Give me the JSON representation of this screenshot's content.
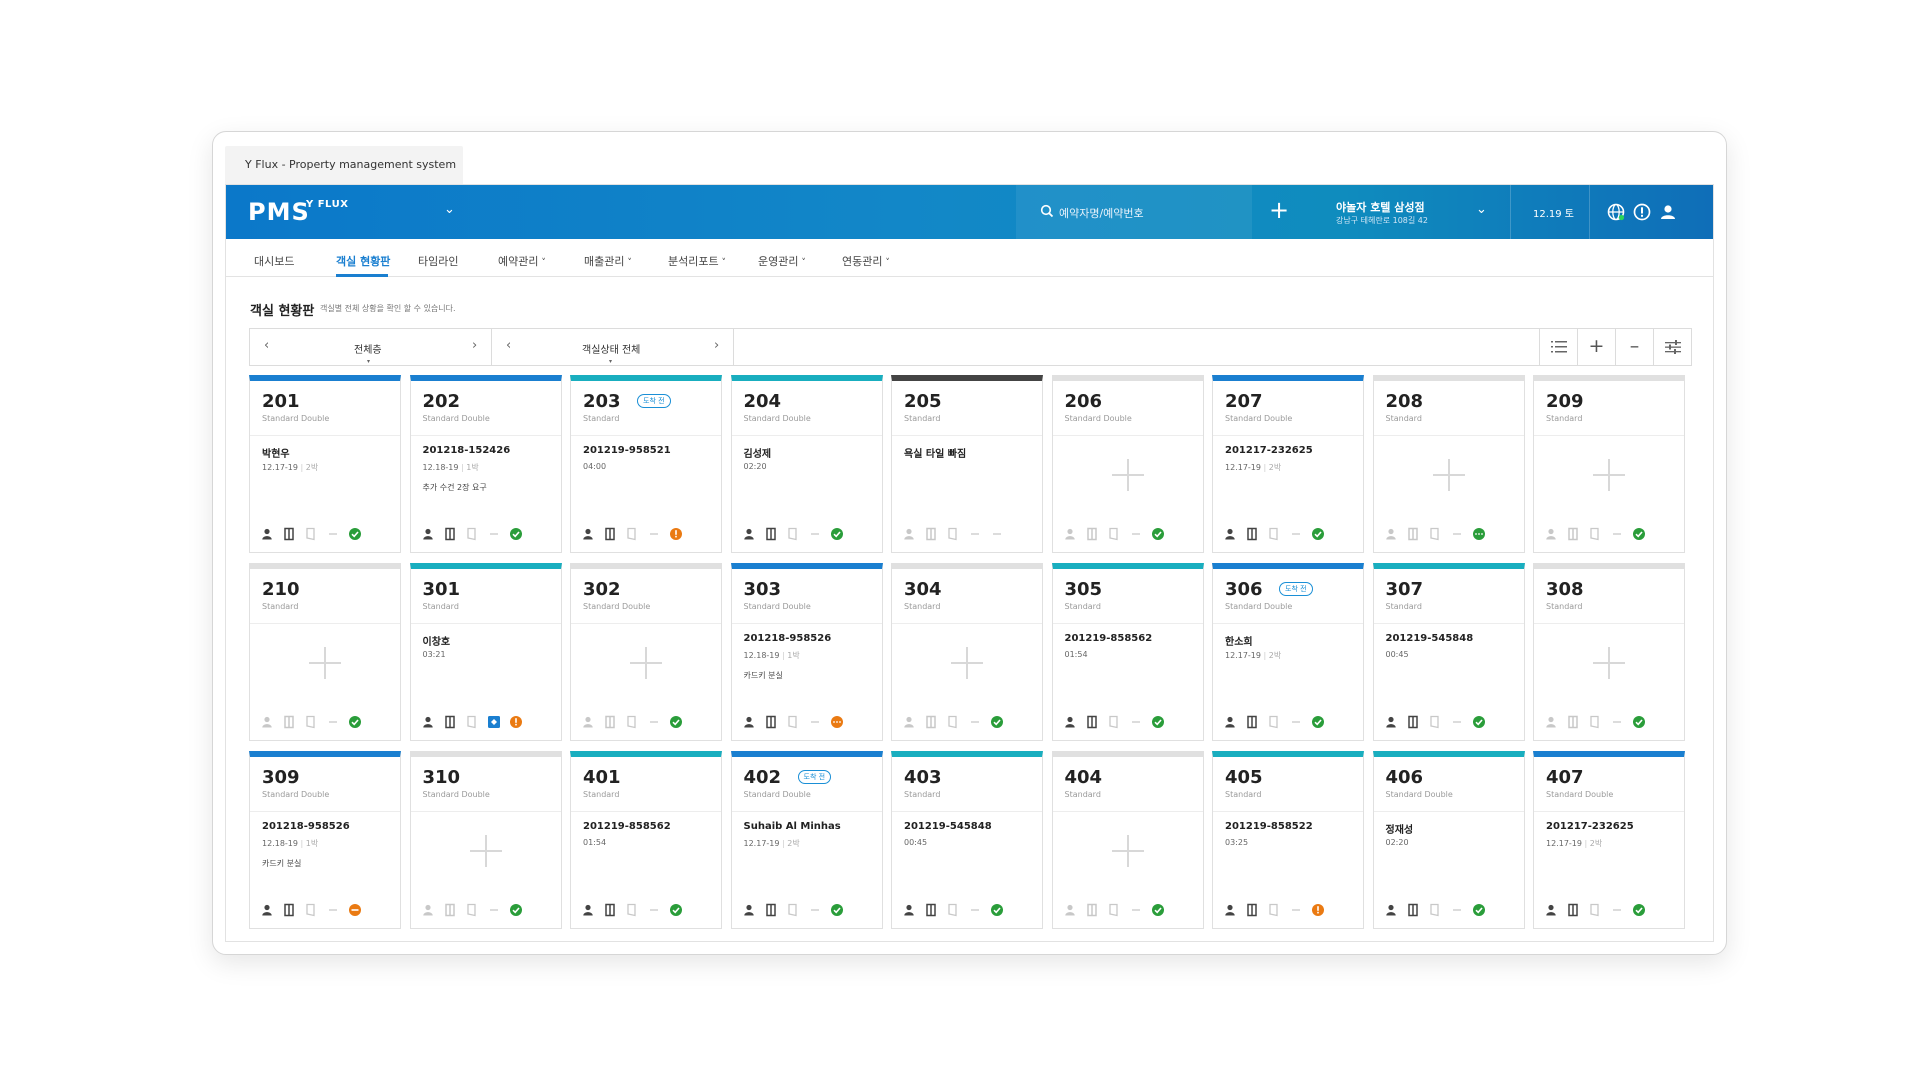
{
  "window": {
    "tab_title": "Y Flux - Property management system"
  },
  "header": {
    "logo": "PMS",
    "logo_sub": "Y FLUX",
    "search_placeholder": "예약자명/예약번호",
    "hotel_name": "야놀자 호텔 삼성점",
    "hotel_address": "강남구 테헤란로 108길 42",
    "date": "12.19 토",
    "accent_color": "#0b78c9"
  },
  "nav": {
    "items": [
      {
        "label": "대시보드",
        "dropdown": false
      },
      {
        "label": "객실 현황판",
        "dropdown": false,
        "active": true
      },
      {
        "label": "타임라인",
        "dropdown": false
      },
      {
        "label": "예약관리",
        "dropdown": true
      },
      {
        "label": "매출관리",
        "dropdown": true
      },
      {
        "label": "분석리포트",
        "dropdown": true
      },
      {
        "label": "운영관리",
        "dropdown": true
      },
      {
        "label": "연동관리",
        "dropdown": true
      }
    ]
  },
  "page": {
    "title": "객실 현황판",
    "description": "객실별 전체 상황을 확인 할 수 있습니다."
  },
  "filters": {
    "floor": "전체층",
    "status": "객실상태 전체"
  },
  "status_colors": {
    "blue": "#1a7fd0",
    "teal": "#19aebf",
    "dark": "#444444",
    "none": "#e0e0e0",
    "ok": "#2a9d3a",
    "warn": "#ea7a12",
    "gray": "#999999"
  },
  "rooms": [
    {
      "num": "201",
      "type": "Standard Double",
      "bar": "blue",
      "guest": "박현우",
      "sub": "12.17-19",
      "pax": "2박",
      "note": "",
      "empty": false,
      "status": "ok"
    },
    {
      "num": "202",
      "type": "Standard Double",
      "bar": "blue",
      "guest": "201218-152426",
      "sub": "12.18-19",
      "pax": "1박",
      "note": "추가 수건 2장 요구",
      "empty": false,
      "status": "ok"
    },
    {
      "num": "203",
      "type": "Standard",
      "bar": "teal",
      "badge": "도착 전",
      "guest": "201219-958521",
      "sub": "04:00",
      "pax": "",
      "note": "",
      "empty": false,
      "status": "warn"
    },
    {
      "num": "204",
      "type": "Standard Double",
      "bar": "teal",
      "guest": "김성제",
      "sub": "02:20",
      "pax": "",
      "note": "",
      "empty": false,
      "status": "ok"
    },
    {
      "num": "205",
      "type": "Standard",
      "bar": "dark",
      "guest": "욕실 타일 빠짐",
      "sub": "",
      "pax": "",
      "note": "",
      "empty": false,
      "status": "none"
    },
    {
      "num": "206",
      "type": "Standard Double",
      "bar": "none",
      "guest": "",
      "sub": "",
      "pax": "",
      "note": "",
      "empty": true,
      "status": "ok"
    },
    {
      "num": "207",
      "type": "Standard Double",
      "bar": "blue",
      "guest": "201217-232625",
      "sub": "12.17-19",
      "pax": "2박",
      "note": "",
      "empty": false,
      "status": "ok"
    },
    {
      "num": "208",
      "type": "Standard",
      "bar": "none",
      "guest": "",
      "sub": "",
      "pax": "",
      "note": "",
      "empty": true,
      "status": "dots"
    },
    {
      "num": "209",
      "type": "Standard",
      "bar": "none",
      "guest": "",
      "sub": "",
      "pax": "",
      "note": "",
      "empty": true,
      "status": "ok"
    },
    {
      "num": "210",
      "type": "Standard",
      "bar": "none",
      "guest": "",
      "sub": "",
      "pax": "",
      "note": "",
      "empty": true,
      "status": "ok"
    },
    {
      "num": "301",
      "type": "Standard",
      "bar": "teal",
      "guest": "이창호",
      "sub": "03:21",
      "pax": "",
      "note": "",
      "empty": false,
      "status": "warn",
      "extra": true
    },
    {
      "num": "302",
      "type": "Standard Double",
      "bar": "none",
      "guest": "",
      "sub": "",
      "pax": "",
      "note": "",
      "empty": true,
      "status": "ok"
    },
    {
      "num": "303",
      "type": "Standard Double",
      "bar": "blue",
      "guest": "201218-958526",
      "sub": "12.18-19",
      "pax": "1박",
      "note": "카드키 분실",
      "empty": false,
      "status": "warndots"
    },
    {
      "num": "304",
      "type": "Standard",
      "bar": "none",
      "guest": "",
      "sub": "",
      "pax": "",
      "note": "",
      "empty": true,
      "status": "ok"
    },
    {
      "num": "305",
      "type": "Standard",
      "bar": "teal",
      "guest": "201219-858562",
      "sub": "01:54",
      "pax": "",
      "note": "",
      "empty": false,
      "status": "ok"
    },
    {
      "num": "306",
      "type": "Standard Double",
      "bar": "blue",
      "badge": "도착 전",
      "guest": "한소희",
      "sub": "12.17-19",
      "pax": "2박",
      "note": "",
      "empty": false,
      "status": "ok"
    },
    {
      "num": "307",
      "type": "Standard",
      "bar": "teal",
      "guest": "201219-545848",
      "sub": "00:45",
      "pax": "",
      "note": "",
      "empty": false,
      "status": "ok"
    },
    {
      "num": "308",
      "type": "Standard",
      "bar": "none",
      "guest": "",
      "sub": "",
      "pax": "",
      "note": "",
      "empty": true,
      "status": "ok"
    },
    {
      "num": "309",
      "type": "Standard Double",
      "bar": "blue",
      "guest": "201218-958526",
      "sub": "12.18-19",
      "pax": "1박",
      "note": "카드키 분실",
      "empty": false,
      "status": "warndash"
    },
    {
      "num": "310",
      "type": "Standard Double",
      "bar": "none",
      "guest": "",
      "sub": "",
      "pax": "",
      "note": "",
      "empty": true,
      "status": "ok"
    },
    {
      "num": "401",
      "type": "Standard",
      "bar": "teal",
      "guest": "201219-858562",
      "sub": "01:54",
      "pax": "",
      "note": "",
      "empty": false,
      "status": "ok"
    },
    {
      "num": "402",
      "type": "Standard Double",
      "bar": "blue",
      "badge": "도착 전",
      "guest": "Suhaib Al Minhas",
      "sub": "12.17-19",
      "pax": "2박",
      "note": "",
      "empty": false,
      "status": "ok"
    },
    {
      "num": "403",
      "type": "Standard",
      "bar": "teal",
      "guest": "201219-545848",
      "sub": "00:45",
      "pax": "",
      "note": "",
      "empty": false,
      "status": "ok"
    },
    {
      "num": "404",
      "type": "Standard",
      "bar": "none",
      "guest": "",
      "sub": "",
      "pax": "",
      "note": "",
      "empty": true,
      "status": "ok"
    },
    {
      "num": "405",
      "type": "Standard",
      "bar": "teal",
      "guest": "201219-858522",
      "sub": "03:25",
      "pax": "",
      "note": "",
      "empty": false,
      "status": "warn"
    },
    {
      "num": "406",
      "type": "Standard Double",
      "bar": "teal",
      "guest": "정재성",
      "sub": "02:20",
      "pax": "",
      "note": "",
      "empty": false,
      "status": "ok"
    },
    {
      "num": "407",
      "type": "Standard Double",
      "bar": "blue",
      "guest": "201217-232625",
      "sub": "12.17-19",
      "pax": "2박",
      "note": "",
      "empty": false,
      "status": "ok"
    }
  ]
}
